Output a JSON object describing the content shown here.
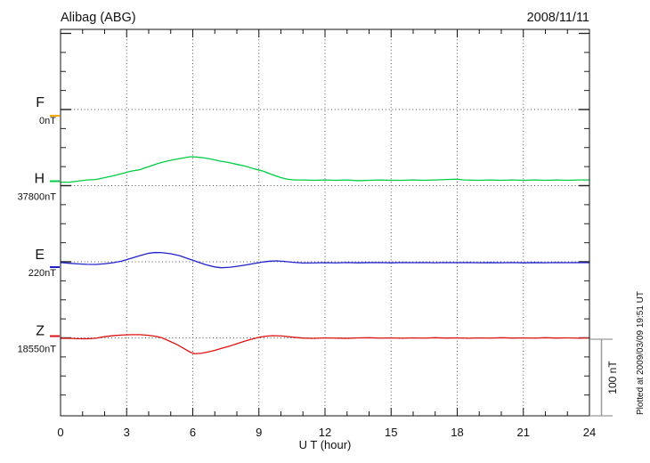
{
  "header": {
    "title": "Alibag (ABG)",
    "date": "2008/11/11"
  },
  "chart_data": {
    "type": "line",
    "station": "Alibag (ABG)",
    "date": "2008/11/11",
    "xlabel": "U T (hour)",
    "xlim": [
      0,
      24
    ],
    "x_ticks": [
      0,
      3,
      6,
      9,
      12,
      15,
      18,
      21,
      24
    ],
    "x_minor_tick_step_hours": 1,
    "y_minor_tick_step_nT": 25,
    "grid": "dotted vertical lines every 3 h, dotted horizontal line at each component baseline",
    "units": "nT",
    "scale_bar": {
      "label": "100 nT",
      "nT": 100
    },
    "plotted_at": "Plotted at 2009/03/09 19:51 UT",
    "series": [
      {
        "name": "F",
        "baseline_label": "0nT",
        "baseline_nT": 0,
        "color": "#FFAA00",
        "points": []
      },
      {
        "name": "H",
        "baseline_label": "37800nT",
        "baseline_nT": 37800,
        "color": "#00CC44",
        "points": [
          [
            0,
            4.5
          ],
          [
            0.4,
            4.5
          ],
          [
            0.8,
            6
          ],
          [
            1.2,
            7.5
          ],
          [
            1.6,
            8
          ],
          [
            2,
            10.5
          ],
          [
            2.4,
            13
          ],
          [
            2.8,
            16
          ],
          [
            3.2,
            19
          ],
          [
            3.6,
            21
          ],
          [
            4,
            25
          ],
          [
            4.4,
            29
          ],
          [
            4.8,
            32
          ],
          [
            5.2,
            34.5
          ],
          [
            5.6,
            36.5
          ],
          [
            5.9,
            38
          ],
          [
            6.2,
            37.5
          ],
          [
            6.5,
            36.5
          ],
          [
            6.9,
            34.5
          ],
          [
            7.2,
            32.5
          ],
          [
            7.6,
            30.5
          ],
          [
            8,
            28
          ],
          [
            8.4,
            25.5
          ],
          [
            8.8,
            22
          ],
          [
            9.2,
            19
          ],
          [
            9.6,
            14.5
          ],
          [
            10,
            10.5
          ],
          [
            10.3,
            8.5
          ],
          [
            10.6,
            7.5
          ],
          [
            11,
            7.5
          ],
          [
            11.5,
            7
          ],
          [
            12,
            7.5
          ],
          [
            12.5,
            7
          ],
          [
            13,
            7.5
          ],
          [
            13.5,
            6.5
          ],
          [
            14,
            7
          ],
          [
            14.5,
            7.5
          ],
          [
            15,
            7
          ],
          [
            15.5,
            7
          ],
          [
            16,
            7.5
          ],
          [
            16.5,
            7
          ],
          [
            17,
            7.5
          ],
          [
            17.5,
            8
          ],
          [
            18,
            8.5
          ],
          [
            18.3,
            7.5
          ],
          [
            19,
            7
          ],
          [
            19.5,
            7.5
          ],
          [
            20,
            7
          ],
          [
            20.5,
            7.5
          ],
          [
            21,
            7
          ],
          [
            21.5,
            7.5
          ],
          [
            22,
            7
          ],
          [
            22.5,
            7.5
          ],
          [
            23,
            7
          ],
          [
            23.5,
            7.5
          ],
          [
            24,
            7.5
          ]
        ]
      },
      {
        "name": "E",
        "baseline_label": "220nT",
        "baseline_nT": 220,
        "color": "#2222CC",
        "points": [
          [
            0,
            -1
          ],
          [
            0.4,
            -2
          ],
          [
            0.8,
            -2.8
          ],
          [
            1.2,
            -3.4
          ],
          [
            1.6,
            -3.5
          ],
          [
            2,
            -2.6
          ],
          [
            2.4,
            -1.2
          ],
          [
            2.8,
            1
          ],
          [
            3.2,
            4.5
          ],
          [
            3.6,
            8
          ],
          [
            4,
            11.2
          ],
          [
            4.3,
            12.2
          ],
          [
            4.6,
            12
          ],
          [
            5,
            10.5
          ],
          [
            5.4,
            8
          ],
          [
            5.8,
            4
          ],
          [
            6.2,
            0
          ],
          [
            6.6,
            -4
          ],
          [
            7,
            -6.8
          ],
          [
            7.3,
            -7.8
          ],
          [
            7.7,
            -7.2
          ],
          [
            8,
            -6
          ],
          [
            8.4,
            -4.2
          ],
          [
            8.8,
            -2.2
          ],
          [
            9.2,
            -0.2
          ],
          [
            9.5,
            0.8
          ],
          [
            9.8,
            1.2
          ],
          [
            10.1,
            0.6
          ],
          [
            10.5,
            -0.6
          ],
          [
            11,
            -1.6
          ],
          [
            11.5,
            -1.5
          ],
          [
            12,
            -1.2
          ],
          [
            12.5,
            -1.5
          ],
          [
            13,
            -1
          ],
          [
            13.5,
            -1.4
          ],
          [
            14,
            -1.1
          ],
          [
            14.5,
            -1
          ],
          [
            15,
            -1.4
          ],
          [
            15.5,
            -1
          ],
          [
            16,
            -1.2
          ],
          [
            16.5,
            -1
          ],
          [
            17,
            -1.3
          ],
          [
            17.5,
            -1
          ],
          [
            18,
            -1.2
          ],
          [
            18.5,
            -1
          ],
          [
            19,
            -1.3
          ],
          [
            19.5,
            -1.1
          ],
          [
            20,
            -1.3
          ],
          [
            20.5,
            -1
          ],
          [
            21,
            -1.4
          ],
          [
            21.5,
            -1.1
          ],
          [
            22,
            -1.3
          ],
          [
            22.5,
            -1
          ],
          [
            23,
            -1.2
          ],
          [
            23.5,
            -1
          ],
          [
            24,
            -1.2
          ]
        ]
      },
      {
        "name": "Z",
        "baseline_label": "18550nT",
        "baseline_nT": 18550,
        "color": "#DD1111",
        "points": [
          [
            0,
            -0.5
          ],
          [
            0.4,
            -0.6
          ],
          [
            0.8,
            -1
          ],
          [
            1.2,
            -1.1
          ],
          [
            1.6,
            -0.4
          ],
          [
            2,
            1.7
          ],
          [
            2.4,
            3
          ],
          [
            2.8,
            3.8
          ],
          [
            3.2,
            4.2
          ],
          [
            3.6,
            4.2
          ],
          [
            4,
            3.4
          ],
          [
            4.3,
            2.2
          ],
          [
            4.6,
            0.2
          ],
          [
            5,
            -5
          ],
          [
            5.3,
            -9
          ],
          [
            5.6,
            -14
          ],
          [
            5.9,
            -19
          ],
          [
            6.1,
            -20.8
          ],
          [
            6.4,
            -20.2
          ],
          [
            6.7,
            -18.4
          ],
          [
            7,
            -16.4
          ],
          [
            7.3,
            -13.8
          ],
          [
            7.7,
            -10.6
          ],
          [
            8,
            -7.6
          ],
          [
            8.3,
            -4.8
          ],
          [
            8.6,
            -2.2
          ],
          [
            9,
            0.8
          ],
          [
            9.3,
            2.2
          ],
          [
            9.6,
            2.9
          ],
          [
            10,
            2.6
          ],
          [
            10.3,
            1.8
          ],
          [
            10.6,
            0.8
          ],
          [
            11,
            -0.2
          ],
          [
            11.5,
            -0.6
          ],
          [
            12,
            0
          ],
          [
            12.5,
            -0.3
          ],
          [
            13,
            -0.5
          ],
          [
            13.5,
            0
          ],
          [
            14,
            0.2
          ],
          [
            14.5,
            -0.3
          ],
          [
            15,
            0
          ],
          [
            15.5,
            -0.4
          ],
          [
            16,
            0
          ],
          [
            16.5,
            -0.3
          ],
          [
            17,
            0.2
          ],
          [
            17.5,
            -0.2
          ],
          [
            18,
            0
          ],
          [
            18.5,
            -0.4
          ],
          [
            19,
            0
          ],
          [
            19.5,
            -0.3
          ],
          [
            20,
            0.2
          ],
          [
            20.5,
            -0.2
          ],
          [
            21,
            0
          ],
          [
            21.5,
            -0.3
          ],
          [
            22,
            0.2
          ],
          [
            22.5,
            -0.2
          ],
          [
            23,
            0
          ],
          [
            23.5,
            -0.3
          ],
          [
            24,
            0
          ]
        ]
      }
    ]
  }
}
